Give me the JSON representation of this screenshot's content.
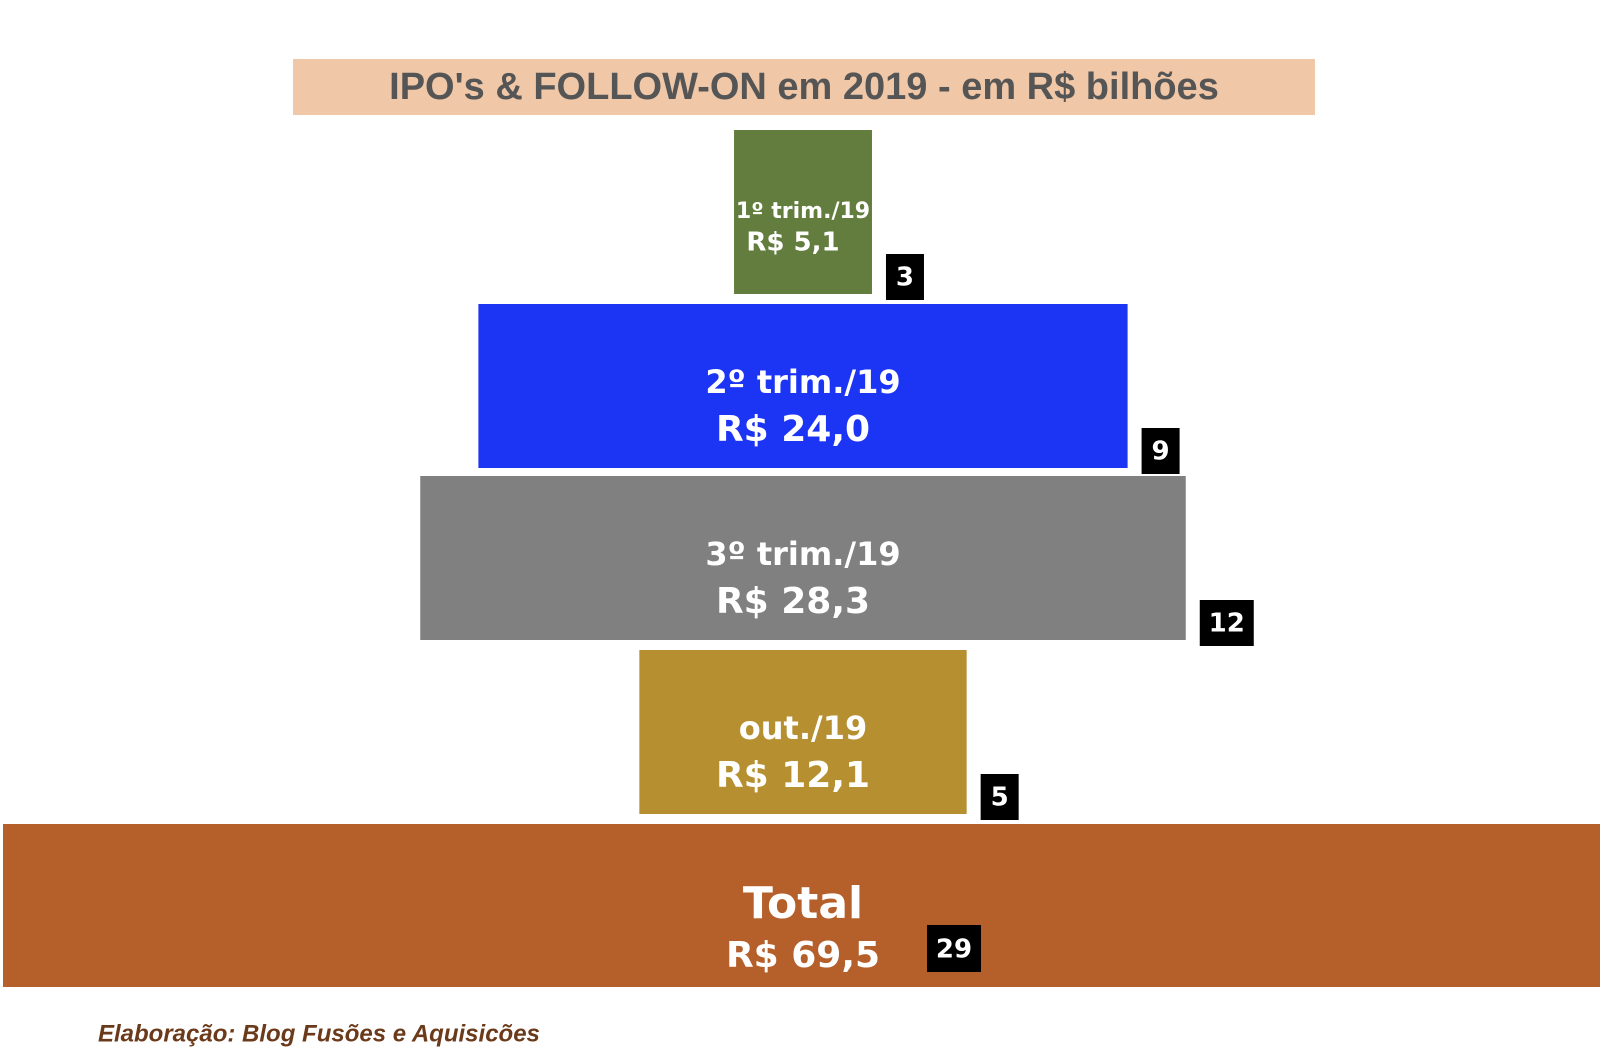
{
  "chart_data": {
    "type": "bar",
    "title": "IPO's & FOLLOW-ON  em 2019 - em R$ bilhões",
    "categories": [
      "1º trim./19",
      "2º trim./19",
      "3º trim./19",
      "out./19"
    ],
    "values": [
      5.1,
      24.0,
      28.3,
      12.1
    ],
    "value_labels": [
      "R$ 5,1",
      "R$ 24,0",
      "R$ 28,3",
      "R$ 12,1"
    ],
    "counts": [
      3,
      9,
      12,
      5
    ],
    "colors": [
      "#627d3e",
      "#1c35f5",
      "#808080",
      "#b58f30"
    ],
    "total": {
      "label": "Total",
      "value": 69.5,
      "value_label": "R$ 69,5",
      "count": 29,
      "color": "#b5602b"
    },
    "source": "Elaboração: Blog Fusões e Aquisicões"
  }
}
